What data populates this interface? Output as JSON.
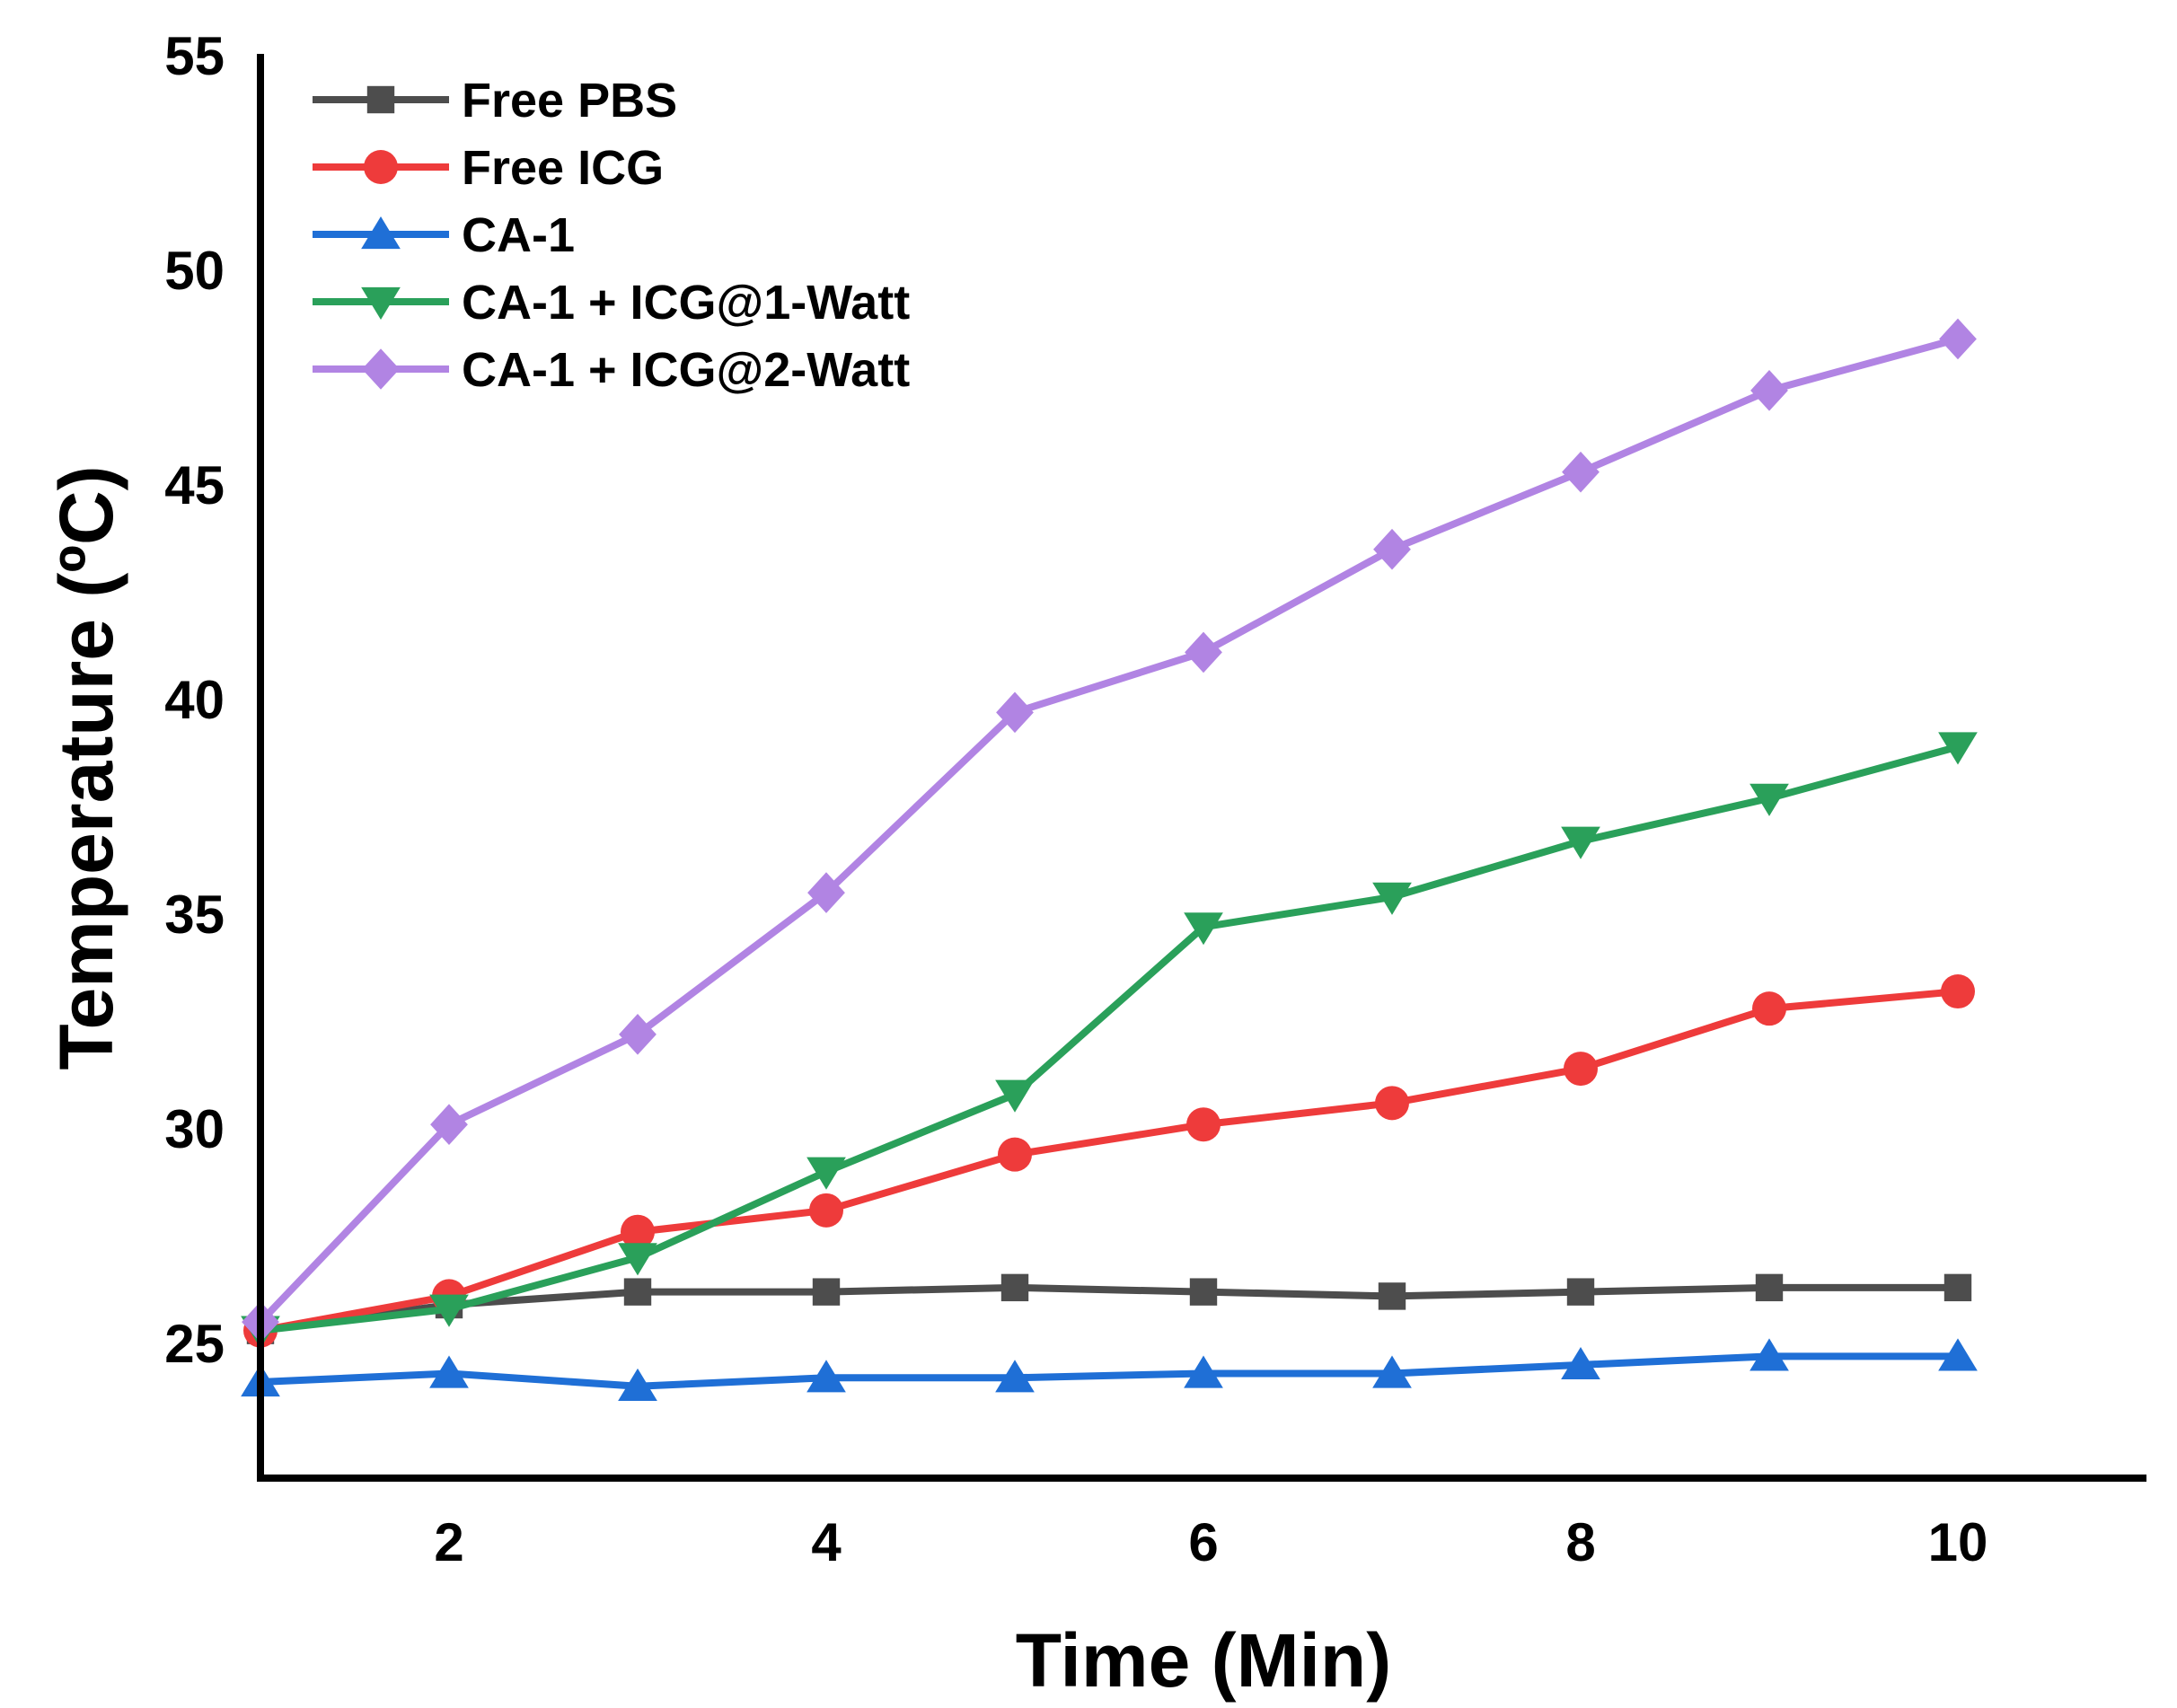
{
  "chart_data": {
    "type": "line",
    "xlabel": "Time (Min)",
    "ylabel": "Temperature (ºC)",
    "xlim": [
      1,
      11
    ],
    "ylim": [
      22,
      55
    ],
    "xticks": [
      2,
      4,
      6,
      8,
      10
    ],
    "yticks": [
      25,
      30,
      35,
      40,
      45,
      50,
      55
    ],
    "grid": false,
    "legend_position": "top-left",
    "x": [
      1,
      2,
      3,
      4,
      5,
      6,
      7,
      8,
      9,
      10
    ],
    "series": [
      {
        "name": "Free PBS",
        "color": "#4d4d4d",
        "marker": "square",
        "values": [
          25.3,
          25.9,
          26.2,
          26.2,
          26.3,
          26.2,
          26.1,
          26.2,
          26.3,
          26.3
        ]
      },
      {
        "name": "Free ICG",
        "color": "#ee3b3b",
        "marker": "circle",
        "values": [
          25.3,
          26.1,
          27.6,
          28.1,
          29.4,
          30.1,
          30.6,
          31.4,
          32.8,
          33.2
        ]
      },
      {
        "name": "CA-1",
        "color": "#1f6fd6",
        "marker": "triangle-up",
        "values": [
          24.1,
          24.3,
          24.0,
          24.2,
          24.2,
          24.3,
          24.3,
          24.5,
          24.7,
          24.7
        ]
      },
      {
        "name": "CA-1 + ICG@1-Watt",
        "color": "#2aa05a",
        "marker": "triangle-down",
        "values": [
          25.3,
          25.8,
          27.0,
          29.0,
          30.8,
          34.7,
          35.4,
          36.7,
          37.7,
          38.9
        ]
      },
      {
        "name": "CA-1 + ICG@2-Watt",
        "color": "#b184e3",
        "marker": "diamond",
        "values": [
          25.5,
          30.1,
          32.2,
          35.5,
          39.7,
          41.1,
          43.5,
          45.3,
          47.2,
          48.4
        ]
      }
    ]
  }
}
